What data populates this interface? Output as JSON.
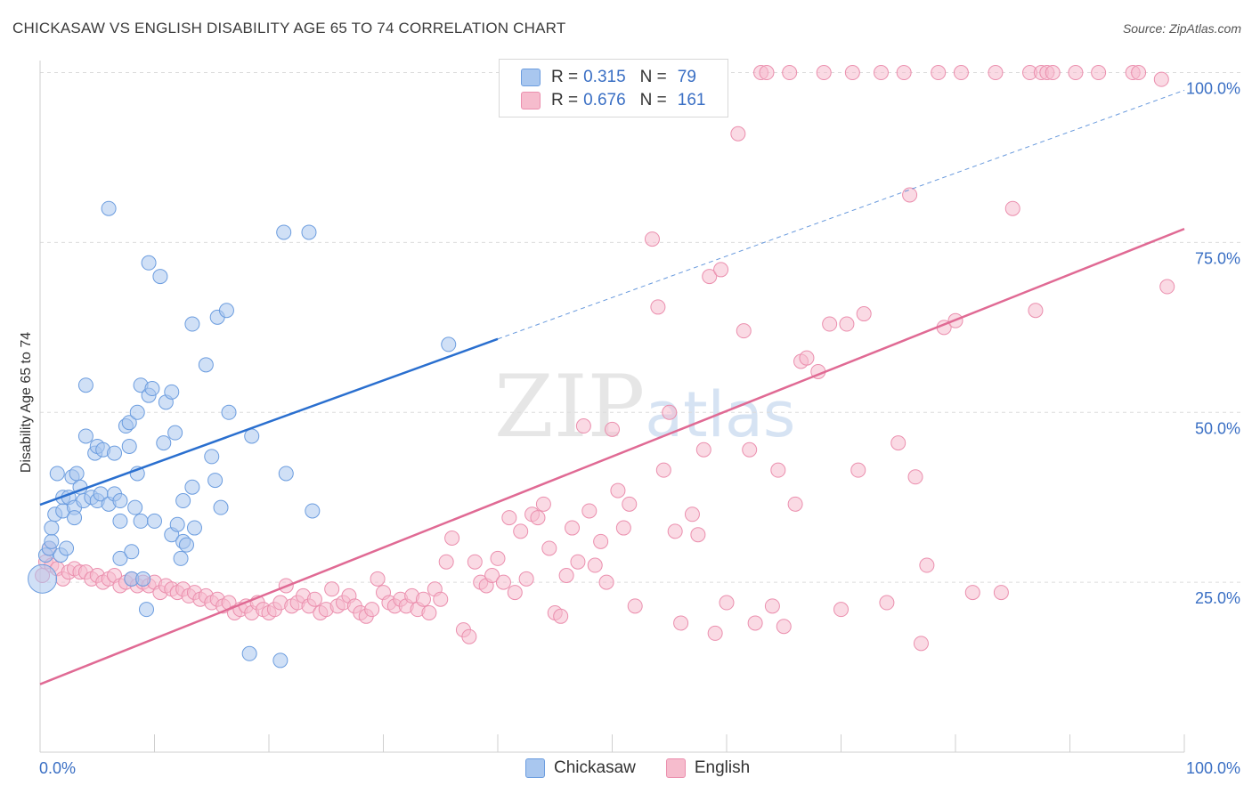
{
  "title": "CHICKASAW VS ENGLISH DISABILITY AGE 65 TO 74 CORRELATION CHART",
  "source": "Source: ZipAtlas.com",
  "watermark": "ZIPatlas",
  "legend_stats": [
    {
      "r_label": "R =",
      "r_value": "0.315",
      "n_label": "N =",
      "n_value": "79"
    },
    {
      "r_label": "R =",
      "r_value": "0.676",
      "n_label": "N =",
      "n_value": "161"
    }
  ],
  "colors": {
    "chickasaw_fill": "#a9c7ef",
    "chickasaw_stroke": "#6c9ddf",
    "chickasaw_line": "#2a6fcf",
    "english_fill": "#f6bccd",
    "english_stroke": "#eb8fae",
    "english_line": "#e06a94",
    "axis_text": "#3a6fc4"
  },
  "chart_data": {
    "type": "scatter",
    "title": "CHICKASAW VS ENGLISH DISABILITY AGE 65 TO 74 CORRELATION CHART",
    "xlabel": "",
    "ylabel": "Disability Age 65 to 74",
    "x_tick_labels": [
      "0.0%",
      "100.0%"
    ],
    "y_tick_labels": [
      "25.0%",
      "50.0%",
      "75.0%",
      "100.0%"
    ],
    "xlim": [
      0,
      100
    ],
    "ylim": [
      0,
      100
    ],
    "grid": true,
    "legend_placement": "bottom",
    "series": [
      {
        "name": "Chickasaw",
        "r": 0.315,
        "n": 79,
        "trend": {
          "x": [
            0,
            40
          ],
          "y": [
            36.4,
            60.8
          ],
          "extension_to": [
            100,
            97.4
          ]
        },
        "points": [
          [
            0.2,
            25.5
          ],
          [
            0.5,
            29
          ],
          [
            0.8,
            30
          ],
          [
            1.0,
            31
          ],
          [
            1.0,
            33
          ],
          [
            1.3,
            35
          ],
          [
            1.8,
            29
          ],
          [
            1.5,
            41
          ],
          [
            2.0,
            37.5
          ],
          [
            2.0,
            35.5
          ],
          [
            2.3,
            30
          ],
          [
            2.5,
            37.5
          ],
          [
            2.8,
            40.5
          ],
          [
            3.0,
            36
          ],
          [
            3.0,
            34.5
          ],
          [
            3.2,
            41
          ],
          [
            3.5,
            39
          ],
          [
            3.8,
            37
          ],
          [
            4.0,
            54
          ],
          [
            4.0,
            46.5
          ],
          [
            4.5,
            37.5
          ],
          [
            4.8,
            44
          ],
          [
            5.0,
            45
          ],
          [
            5.0,
            37
          ],
          [
            5.3,
            38
          ],
          [
            5.5,
            44.5
          ],
          [
            6.0,
            36.5
          ],
          [
            6.5,
            38
          ],
          [
            6.5,
            44
          ],
          [
            7.0,
            37
          ],
          [
            6.0,
            80
          ],
          [
            7.0,
            34
          ],
          [
            7.0,
            28.5
          ],
          [
            7.5,
            48
          ],
          [
            7.8,
            48.5
          ],
          [
            7.8,
            45
          ],
          [
            8.0,
            29.5
          ],
          [
            8.0,
            25.5
          ],
          [
            8.3,
            36
          ],
          [
            8.5,
            50
          ],
          [
            8.5,
            41
          ],
          [
            8.8,
            54
          ],
          [
            8.8,
            34
          ],
          [
            9.0,
            25.5
          ],
          [
            9.3,
            21
          ],
          [
            9.5,
            72
          ],
          [
            9.5,
            52.5
          ],
          [
            9.8,
            53.5
          ],
          [
            10.0,
            34
          ],
          [
            10.5,
            70
          ],
          [
            10.8,
            45.5
          ],
          [
            11.0,
            51.5
          ],
          [
            11.5,
            32
          ],
          [
            11.5,
            53
          ],
          [
            11.8,
            47
          ],
          [
            12.0,
            33.5
          ],
          [
            12.3,
            28.5
          ],
          [
            12.5,
            37
          ],
          [
            12.5,
            31
          ],
          [
            12.8,
            30.5
          ],
          [
            13.3,
            39
          ],
          [
            13.5,
            33
          ],
          [
            13.3,
            63
          ],
          [
            14.5,
            57
          ],
          [
            15.0,
            43.5
          ],
          [
            15.3,
            40
          ],
          [
            15.5,
            64
          ],
          [
            15.8,
            36
          ],
          [
            16.3,
            65
          ],
          [
            16.5,
            50
          ],
          [
            18.3,
            14.5
          ],
          [
            18.5,
            46.5
          ],
          [
            21.0,
            13.5
          ],
          [
            21.3,
            76.5
          ],
          [
            21.5,
            41
          ],
          [
            23.5,
            76.5
          ],
          [
            23.8,
            35.5
          ],
          [
            35.7,
            60
          ]
        ]
      },
      {
        "name": "English",
        "r": 0.676,
        "n": 161,
        "trend": {
          "x": [
            0,
            100
          ],
          "y": [
            10,
            77
          ]
        },
        "points": [
          [
            0.2,
            26
          ],
          [
            0.5,
            28
          ],
          [
            0.8,
            30
          ],
          [
            1.0,
            27.5
          ],
          [
            1.5,
            27
          ],
          [
            2.0,
            25.5
          ],
          [
            2.5,
            26.5
          ],
          [
            3.0,
            27
          ],
          [
            3.5,
            26.5
          ],
          [
            4.0,
            26.5
          ],
          [
            4.5,
            25.5
          ],
          [
            5.0,
            26
          ],
          [
            5.5,
            25
          ],
          [
            6.0,
            25.5
          ],
          [
            6.5,
            26
          ],
          [
            7.0,
            24.5
          ],
          [
            7.5,
            25
          ],
          [
            8.0,
            25.5
          ],
          [
            8.5,
            24.5
          ],
          [
            9.0,
            25
          ],
          [
            9.5,
            24.5
          ],
          [
            10.0,
            25
          ],
          [
            10.5,
            23.5
          ],
          [
            11.0,
            24.5
          ],
          [
            11.5,
            24
          ],
          [
            12.0,
            23.5
          ],
          [
            12.5,
            24
          ],
          [
            13.0,
            23
          ],
          [
            13.5,
            23.5
          ],
          [
            14.0,
            22.5
          ],
          [
            14.5,
            23
          ],
          [
            15.0,
            22
          ],
          [
            15.5,
            22.5
          ],
          [
            16.0,
            21.5
          ],
          [
            16.5,
            22
          ],
          [
            17.0,
            20.5
          ],
          [
            17.5,
            21
          ],
          [
            18.0,
            21.5
          ],
          [
            18.5,
            20.5
          ],
          [
            19.0,
            22
          ],
          [
            19.5,
            21
          ],
          [
            20.0,
            20.5
          ],
          [
            20.5,
            21
          ],
          [
            21.0,
            22
          ],
          [
            21.5,
            24.5
          ],
          [
            22.0,
            21.5
          ],
          [
            22.5,
            22
          ],
          [
            23.0,
            23
          ],
          [
            23.5,
            21.5
          ],
          [
            24.0,
            22.5
          ],
          [
            24.5,
            20.5
          ],
          [
            25.0,
            21
          ],
          [
            25.5,
            24
          ],
          [
            26.0,
            21.5
          ],
          [
            26.5,
            22
          ],
          [
            27.0,
            23
          ],
          [
            27.5,
            21.5
          ],
          [
            28.0,
            20.5
          ],
          [
            28.5,
            20
          ],
          [
            29.0,
            21
          ],
          [
            29.5,
            25.5
          ],
          [
            30.0,
            23.5
          ],
          [
            30.5,
            22
          ],
          [
            31.0,
            21.5
          ],
          [
            31.5,
            22.5
          ],
          [
            32.0,
            21.5
          ],
          [
            32.5,
            23
          ],
          [
            33.0,
            21
          ],
          [
            33.5,
            22.5
          ],
          [
            34.0,
            20.5
          ],
          [
            34.5,
            24
          ],
          [
            35.0,
            22.5
          ],
          [
            35.5,
            28
          ],
          [
            36.0,
            31.5
          ],
          [
            37.0,
            18
          ],
          [
            37.5,
            17
          ],
          [
            38.0,
            28
          ],
          [
            38.5,
            25
          ],
          [
            39.0,
            24.5
          ],
          [
            39.5,
            26
          ],
          [
            40.0,
            28.5
          ],
          [
            40.5,
            25
          ],
          [
            41.0,
            34.5
          ],
          [
            41.5,
            23.5
          ],
          [
            42.0,
            32.5
          ],
          [
            42.5,
            25.5
          ],
          [
            43.0,
            35
          ],
          [
            43.5,
            34.5
          ],
          [
            44.0,
            36.5
          ],
          [
            44.5,
            30
          ],
          [
            45.0,
            20.5
          ],
          [
            45.5,
            20
          ],
          [
            46.0,
            26
          ],
          [
            46.5,
            33
          ],
          [
            47.0,
            28
          ],
          [
            47.5,
            48
          ],
          [
            48.0,
            35.5
          ],
          [
            48.5,
            27.5
          ],
          [
            49.0,
            31
          ],
          [
            49.5,
            25
          ],
          [
            50.0,
            47.5
          ],
          [
            50.5,
            38.5
          ],
          [
            51.0,
            33
          ],
          [
            51.5,
            36.5
          ],
          [
            52.0,
            21.5
          ],
          [
            53.0,
            100
          ],
          [
            53.5,
            75.5
          ],
          [
            54.0,
            65.5
          ],
          [
            54.5,
            41.5
          ],
          [
            55.0,
            50
          ],
          [
            55.5,
            32.5
          ],
          [
            56.0,
            19
          ],
          [
            57.0,
            35
          ],
          [
            57.5,
            32
          ],
          [
            58.0,
            44.5
          ],
          [
            58.5,
            70
          ],
          [
            59.0,
            17.5
          ],
          [
            59.5,
            71
          ],
          [
            60.0,
            22
          ],
          [
            61.0,
            91
          ],
          [
            61.5,
            62
          ],
          [
            62.0,
            44.5
          ],
          [
            62.5,
            19
          ],
          [
            63.0,
            100
          ],
          [
            63.5,
            100
          ],
          [
            64.0,
            21.5
          ],
          [
            64.5,
            41.5
          ],
          [
            65.0,
            18.5
          ],
          [
            65.5,
            100
          ],
          [
            66.0,
            36.5
          ],
          [
            66.5,
            57.5
          ],
          [
            67.0,
            58
          ],
          [
            68.0,
            56
          ],
          [
            68.5,
            100
          ],
          [
            69.0,
            63
          ],
          [
            70.0,
            21
          ],
          [
            70.5,
            63
          ],
          [
            71.0,
            100
          ],
          [
            71.5,
            41.5
          ],
          [
            72.0,
            64.5
          ],
          [
            73.5,
            100
          ],
          [
            74.0,
            22
          ],
          [
            75.0,
            45.5
          ],
          [
            75.5,
            100
          ],
          [
            76.0,
            82
          ],
          [
            76.5,
            40.5
          ],
          [
            77.0,
            16
          ],
          [
            77.5,
            27.5
          ],
          [
            78.5,
            100
          ],
          [
            79.0,
            62.5
          ],
          [
            80.0,
            63.5
          ],
          [
            80.5,
            100
          ],
          [
            81.5,
            23.5
          ],
          [
            83.5,
            100
          ],
          [
            84.0,
            23.5
          ],
          [
            85.0,
            80
          ],
          [
            86.5,
            100
          ],
          [
            87.0,
            65
          ],
          [
            87.5,
            100
          ],
          [
            88.0,
            100
          ],
          [
            88.5,
            100
          ],
          [
            90.5,
            100
          ],
          [
            92.5,
            100
          ],
          [
            95.5,
            100
          ],
          [
            96.0,
            100
          ],
          [
            98.0,
            99
          ],
          [
            98.5,
            68.5
          ]
        ]
      }
    ]
  },
  "legend_bottom": [
    {
      "label": "Chickasaw"
    },
    {
      "label": "English"
    }
  ]
}
